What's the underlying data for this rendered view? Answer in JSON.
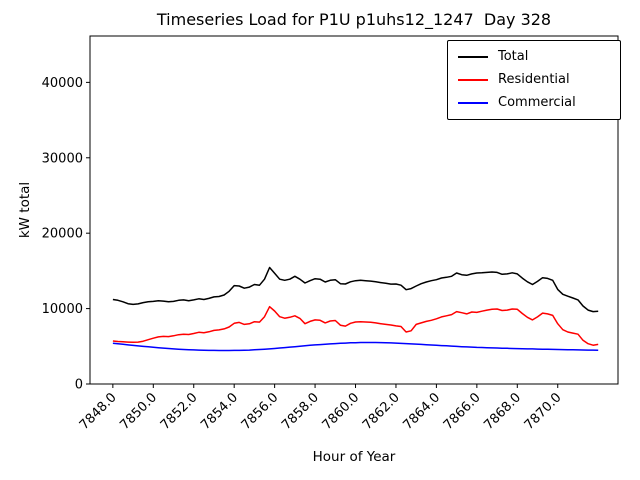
{
  "figure": {
    "background": "#ffffff"
  },
  "chart_data": {
    "type": "line",
    "title": "Timeseries Load for P1U p1uhs12_1247  Day 328",
    "xlabel": "Hour of Year",
    "ylabel": "kW total",
    "grid": false,
    "legend_position": "upper right",
    "xlim": [
      7846.87,
      7872.98
    ],
    "ylim": [
      0,
      46150
    ],
    "x_ticks": [
      7848.0,
      7850.0,
      7852.0,
      7854.0,
      7856.0,
      7858.0,
      7860.0,
      7862.0,
      7864.0,
      7866.0,
      7868.0,
      7870.0
    ],
    "x_tick_labels": [
      "7848.0",
      "7850.0",
      "7852.0",
      "7854.0",
      "7856.0",
      "7858.0",
      "7860.0",
      "7862.0",
      "7864.0",
      "7866.0",
      "7868.0",
      "7870.0"
    ],
    "y_ticks": [
      0,
      10000,
      20000,
      30000,
      40000
    ],
    "y_tick_labels": [
      "0",
      "10000",
      "20000",
      "30000",
      "40000"
    ],
    "x": [
      7848.0,
      7848.25,
      7848.5,
      7848.75,
      7849.0,
      7849.25,
      7849.5,
      7849.75,
      7850.0,
      7850.25,
      7850.5,
      7850.75,
      7851.0,
      7851.25,
      7851.5,
      7851.75,
      7852.0,
      7852.25,
      7852.5,
      7852.75,
      7853.0,
      7853.25,
      7853.5,
      7853.75,
      7854.0,
      7854.25,
      7854.5,
      7854.75,
      7855.0,
      7855.25,
      7855.5,
      7855.75,
      7856.0,
      7856.25,
      7856.5,
      7856.75,
      7857.0,
      7857.25,
      7857.5,
      7857.75,
      7858.0,
      7858.25,
      7858.5,
      7858.75,
      7859.0,
      7859.25,
      7859.5,
      7859.75,
      7860.0,
      7860.25,
      7860.5,
      7860.75,
      7861.0,
      7861.25,
      7861.5,
      7861.75,
      7862.0,
      7862.25,
      7862.5,
      7862.75,
      7863.0,
      7863.25,
      7863.5,
      7863.75,
      7864.0,
      7864.25,
      7864.5,
      7864.75,
      7865.0,
      7865.25,
      7865.5,
      7865.75,
      7866.0,
      7866.25,
      7866.5,
      7866.75,
      7867.0,
      7867.25,
      7867.5,
      7867.75,
      7868.0,
      7868.25,
      7868.5,
      7868.75,
      7869.0,
      7869.25,
      7869.5,
      7869.75,
      7870.0,
      7870.25,
      7870.5,
      7870.75,
      7871.0,
      7871.25,
      7871.5,
      7871.75,
      7872.0
    ],
    "series": [
      {
        "name": "Total",
        "color": "#000000",
        "values": [
          11200,
          11100,
          10900,
          10650,
          10550,
          10620,
          10800,
          10900,
          10950,
          11050,
          11000,
          10900,
          10950,
          11100,
          11150,
          11050,
          11150,
          11300,
          11200,
          11350,
          11550,
          11600,
          11800,
          12300,
          13050,
          13000,
          12700,
          12850,
          13200,
          13100,
          13900,
          15450,
          14700,
          13900,
          13750,
          13900,
          14280,
          13900,
          13400,
          13700,
          13970,
          13900,
          13530,
          13750,
          13830,
          13300,
          13260,
          13550,
          13700,
          13750,
          13700,
          13650,
          13550,
          13450,
          13350,
          13250,
          13260,
          13100,
          12510,
          12650,
          13000,
          13300,
          13530,
          13700,
          13830,
          14060,
          14150,
          14280,
          14720,
          14500,
          14410,
          14600,
          14720,
          14750,
          14800,
          14850,
          14800,
          14550,
          14600,
          14750,
          14600,
          14050,
          13550,
          13200,
          13600,
          14100,
          14000,
          13750,
          12550,
          11900,
          11650,
          11400,
          11150,
          10350,
          9800,
          9600,
          9650
        ]
      },
      {
        "name": "Residential",
        "color": "#ff0000",
        "values": [
          5700,
          5640,
          5590,
          5550,
          5530,
          5560,
          5680,
          5880,
          6080,
          6240,
          6310,
          6280,
          6390,
          6540,
          6610,
          6570,
          6700,
          6860,
          6800,
          6920,
          7110,
          7170,
          7310,
          7560,
          8050,
          8170,
          7910,
          7980,
          8260,
          8210,
          8920,
          10250,
          9680,
          8930,
          8720,
          8850,
          9040,
          8700,
          8000,
          8300,
          8500,
          8450,
          8100,
          8350,
          8420,
          7800,
          7680,
          8050,
          8220,
          8250,
          8220,
          8180,
          8100,
          8000,
          7900,
          7820,
          7700,
          7620,
          6900,
          7050,
          7900,
          8100,
          8300,
          8450,
          8650,
          8900,
          9050,
          9200,
          9600,
          9450,
          9300,
          9550,
          9500,
          9650,
          9800,
          9900,
          9950,
          9750,
          9800,
          9950,
          9900,
          9350,
          8850,
          8500,
          8900,
          9400,
          9300,
          9100,
          8000,
          7200,
          6900,
          6750,
          6600,
          5800,
          5350,
          5150,
          5250
        ]
      },
      {
        "name": "Commercial",
        "color": "#0000ff",
        "values": [
          5400,
          5330,
          5260,
          5190,
          5120,
          5050,
          4990,
          4930,
          4870,
          4810,
          4760,
          4710,
          4660,
          4620,
          4580,
          4550,
          4520,
          4500,
          4480,
          4460,
          4450,
          4440,
          4440,
          4440,
          4450,
          4460,
          4480,
          4500,
          4530,
          4570,
          4610,
          4660,
          4710,
          4770,
          4830,
          4890,
          4950,
          5010,
          5070,
          5130,
          5180,
          5230,
          5280,
          5320,
          5360,
          5400,
          5430,
          5460,
          5480,
          5500,
          5510,
          5510,
          5500,
          5490,
          5470,
          5450,
          5420,
          5390,
          5360,
          5320,
          5290,
          5250,
          5210,
          5170,
          5130,
          5090,
          5060,
          5020,
          4990,
          4950,
          4920,
          4890,
          4860,
          4840,
          4810,
          4790,
          4770,
          4750,
          4730,
          4710,
          4700,
          4680,
          4660,
          4650,
          4630,
          4620,
          4600,
          4590,
          4570,
          4560,
          4540,
          4530,
          4520,
          4510,
          4500,
          4490,
          4480
        ]
      }
    ]
  }
}
